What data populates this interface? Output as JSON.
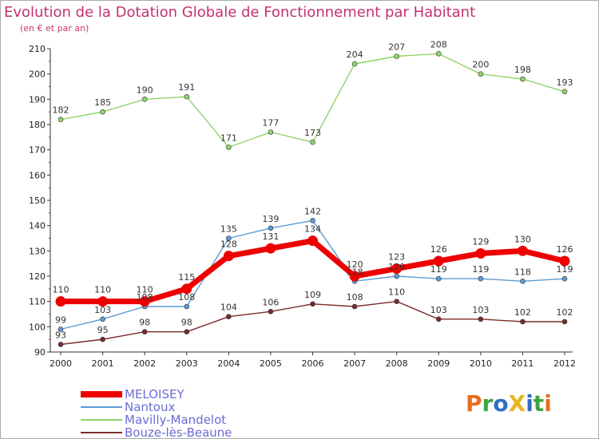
{
  "header": {
    "title": "Evolution de la Dotation Globale de Fonctionnement par Habitant",
    "subtitle": "(en € et par an)"
  },
  "logo": {
    "text": "ProXiti",
    "colors": [
      "#e86d1f",
      "#3da53d",
      "#2f6fc4",
      "#e8b51f",
      "#2f6fc4",
      "#3da53d",
      "#e86d1f"
    ]
  },
  "chart_data": {
    "type": "line",
    "title": "Evolution de la Dotation Globale de Fonctionnement par Habitant",
    "subtitle": "(en € et par an)",
    "xlabel": "",
    "ylabel": "",
    "x": [
      "2000",
      "2001",
      "2002",
      "2003",
      "2004",
      "2005",
      "2006",
      "2007",
      "2008",
      "2009",
      "2010",
      "2011",
      "2012"
    ],
    "ylim": [
      90,
      210
    ],
    "yticks": [
      90,
      100,
      110,
      120,
      130,
      140,
      150,
      160,
      170,
      180,
      190,
      200,
      210
    ],
    "grid": false,
    "legend_placement": "bottom-left",
    "series": [
      {
        "name": "MELOISEY",
        "color": "#ee0000",
        "values": [
          110,
          110,
          110,
          115,
          128,
          131,
          134,
          120,
          123,
          126,
          129,
          130,
          126
        ],
        "labels": [
          "110",
          "110",
          "110",
          "115",
          "128",
          "131",
          "134",
          "120",
          "123",
          "126",
          "129",
          "130",
          "126"
        ],
        "thick": true
      },
      {
        "name": "Nantoux",
        "color": "#5b9bd5",
        "values": [
          99,
          103,
          108,
          108,
          135,
          139,
          142,
          118,
          120,
          119,
          119,
          118,
          119
        ],
        "labels": [
          "99",
          "103",
          "108",
          "108",
          "135",
          "139",
          "142",
          "118",
          "120",
          "119",
          "119",
          "118",
          "119"
        ]
      },
      {
        "name": "Mavilly-Mandelot",
        "color": "#8fd46a",
        "values": [
          182,
          185,
          190,
          191,
          171,
          177,
          173,
          204,
          207,
          208,
          200,
          198,
          193
        ],
        "labels": [
          "182",
          "185",
          "190",
          "191",
          "171",
          "177",
          "173",
          "204",
          "207",
          "208",
          "200",
          "198",
          "193"
        ]
      },
      {
        "name": "Bouze-lès-Beaune",
        "color": "#7b2b2b",
        "values": [
          93,
          95,
          98,
          98,
          104,
          106,
          109,
          108,
          110,
          103,
          103,
          102,
          102
        ],
        "labels": [
          "93",
          "95",
          "98",
          "98",
          "104",
          "106",
          "109",
          "108",
          "110",
          "103",
          "103",
          "102",
          "102"
        ]
      }
    ]
  }
}
